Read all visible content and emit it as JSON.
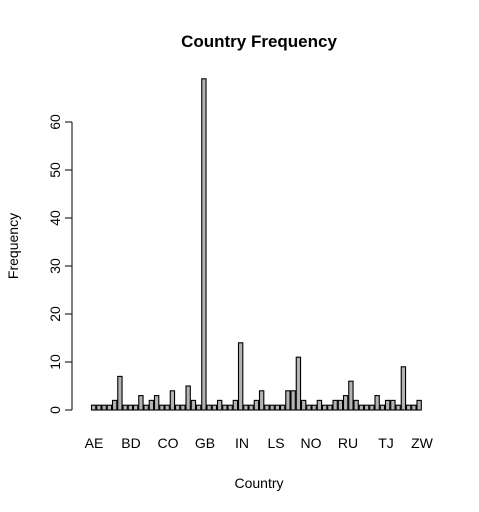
{
  "chart_data": {
    "type": "bar",
    "title": "Country Frequency",
    "xlabel": "Country",
    "ylabel": "Frequency",
    "ylim": [
      0,
      68
    ],
    "y_ticks": [
      0,
      10,
      20,
      30,
      40,
      50,
      60
    ],
    "x_tick_labels": [
      "AE",
      "BD",
      "CO",
      "GB",
      "IN",
      "LS",
      "NO",
      "RU",
      "TJ",
      "ZW"
    ],
    "values": [
      1,
      1,
      1,
      1,
      2,
      7,
      1,
      1,
      1,
      3,
      1,
      2,
      3,
      1,
      1,
      4,
      1,
      1,
      5,
      2,
      1,
      69,
      1,
      1,
      2,
      1,
      1,
      2,
      14,
      1,
      1,
      2,
      4,
      1,
      1,
      1,
      1,
      4,
      4,
      11,
      2,
      1,
      1,
      2,
      1,
      1,
      2,
      2,
      3,
      6,
      2,
      1,
      1,
      1,
      3,
      1,
      2,
      2,
      1,
      9,
      1,
      1,
      2
    ],
    "bar_fill": "#b3b3b3",
    "grid": false,
    "legend": "none"
  }
}
